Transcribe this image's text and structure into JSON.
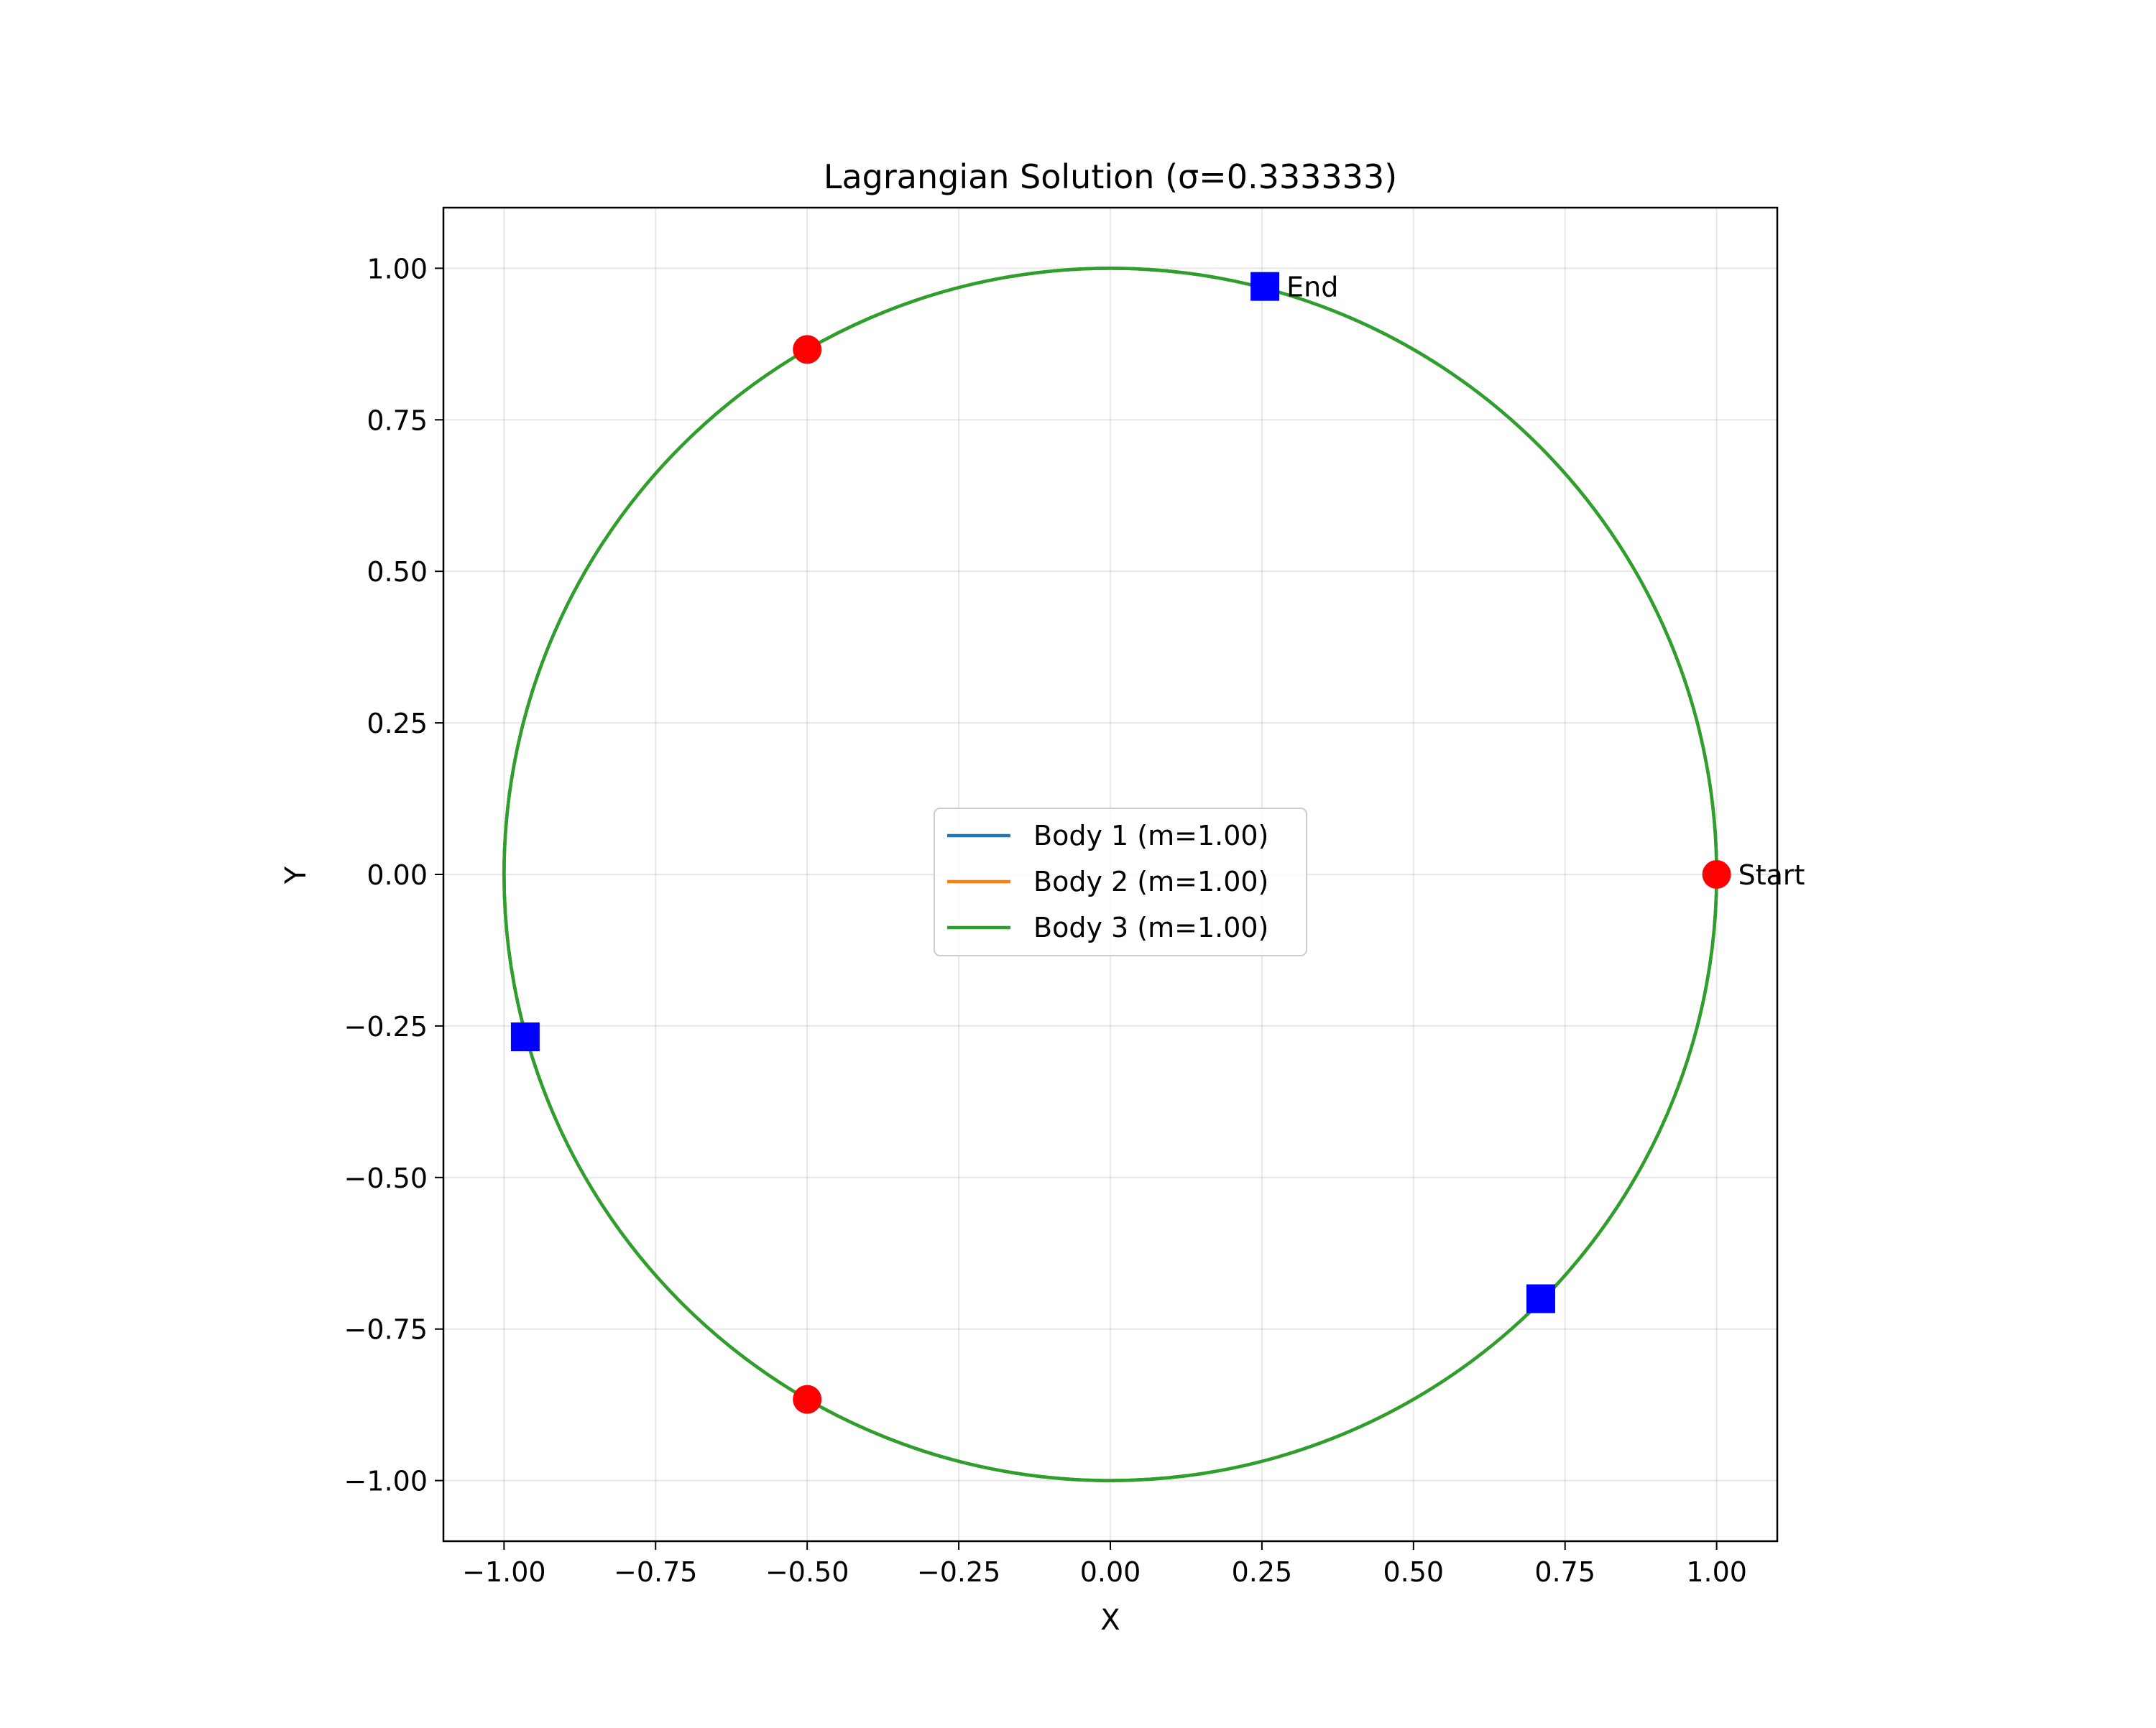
{
  "chart_data": {
    "type": "line",
    "title": "Lagrangian Solution (σ=0.333333)",
    "xlabel": "X",
    "ylabel": "Y",
    "xlim": [
      -1.1,
      1.1
    ],
    "ylim": [
      -1.1,
      1.1
    ],
    "xticks": [
      -1.0,
      -0.75,
      -0.5,
      -0.25,
      0.0,
      0.25,
      0.5,
      0.75,
      1.0
    ],
    "yticks": [
      -1.0,
      -0.75,
      -0.5,
      -0.25,
      0.0,
      0.25,
      0.5,
      0.75,
      1.0
    ],
    "xtick_labels": [
      "−1.00",
      "−0.75",
      "−0.50",
      "−0.25",
      "0.00",
      "0.25",
      "0.50",
      "0.75",
      "1.00"
    ],
    "ytick_labels": [
      "−1.00",
      "−0.75",
      "−0.50",
      "−0.25",
      "0.00",
      "0.25",
      "0.50",
      "0.75",
      "1.00"
    ],
    "grid": true,
    "legend_position": "center",
    "series": [
      {
        "name": "Body 1 (m=1.00)",
        "color": "#1f77b4",
        "shape": "circle",
        "radius": 1.0,
        "center": [
          0,
          0
        ]
      },
      {
        "name": "Body 2 (m=1.00)",
        "color": "#ff7f0e",
        "shape": "circle",
        "radius": 1.0,
        "center": [
          0,
          0
        ]
      },
      {
        "name": "Body 3 (m=1.00)",
        "color": "#2ca02c",
        "shape": "circle",
        "radius": 1.0,
        "center": [
          0,
          0
        ]
      }
    ],
    "start_points": {
      "label": "Start",
      "color": "#ff0000",
      "marker": "circle",
      "points": [
        [
          1.0,
          0.0
        ],
        [
          -0.5,
          0.866
        ],
        [
          -0.5,
          -0.866
        ]
      ]
    },
    "end_points": {
      "label": "End",
      "color": "#0000ff",
      "marker": "square",
      "points": [
        [
          0.255,
          0.97
        ],
        [
          -0.965,
          -0.268
        ],
        [
          0.71,
          -0.7
        ]
      ]
    }
  }
}
